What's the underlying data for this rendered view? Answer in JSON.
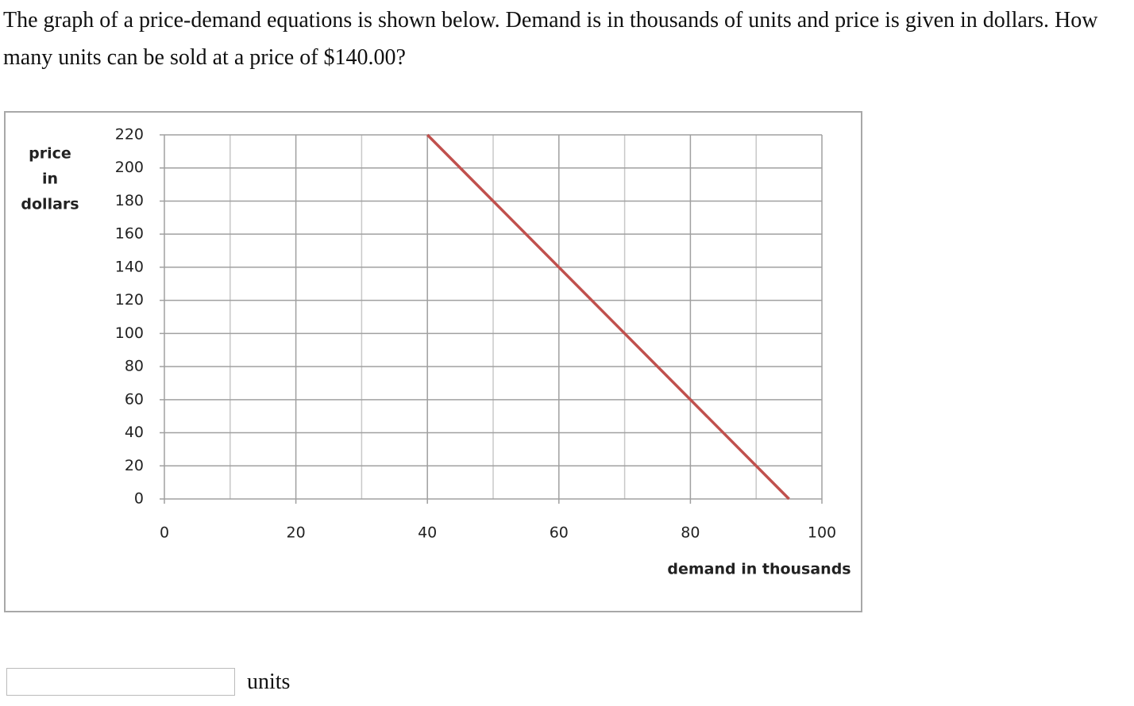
{
  "question": "The graph of a price-demand equations is shown below. Demand is in thousands of units and price is given in dollars. How many units can be sold at a price of $140.00?",
  "answer_unit": "units",
  "chart_data": {
    "type": "line",
    "ylabel": [
      "price",
      "in",
      "dollars"
    ],
    "xlabel": "demand in thousands",
    "x": [
      40,
      95
    ],
    "series": [
      {
        "name": "demand",
        "color": "#c0504d",
        "values": [
          220,
          0
        ]
      }
    ],
    "xlim": [
      0,
      100
    ],
    "ylim": [
      0,
      220
    ],
    "xticks": [
      0,
      20,
      40,
      60,
      80,
      100
    ],
    "x_minor_grid": [
      10,
      30,
      50,
      70,
      90
    ],
    "yticks": [
      0,
      20,
      40,
      60,
      80,
      100,
      120,
      140,
      160,
      180,
      200,
      220
    ],
    "grid": true
  }
}
